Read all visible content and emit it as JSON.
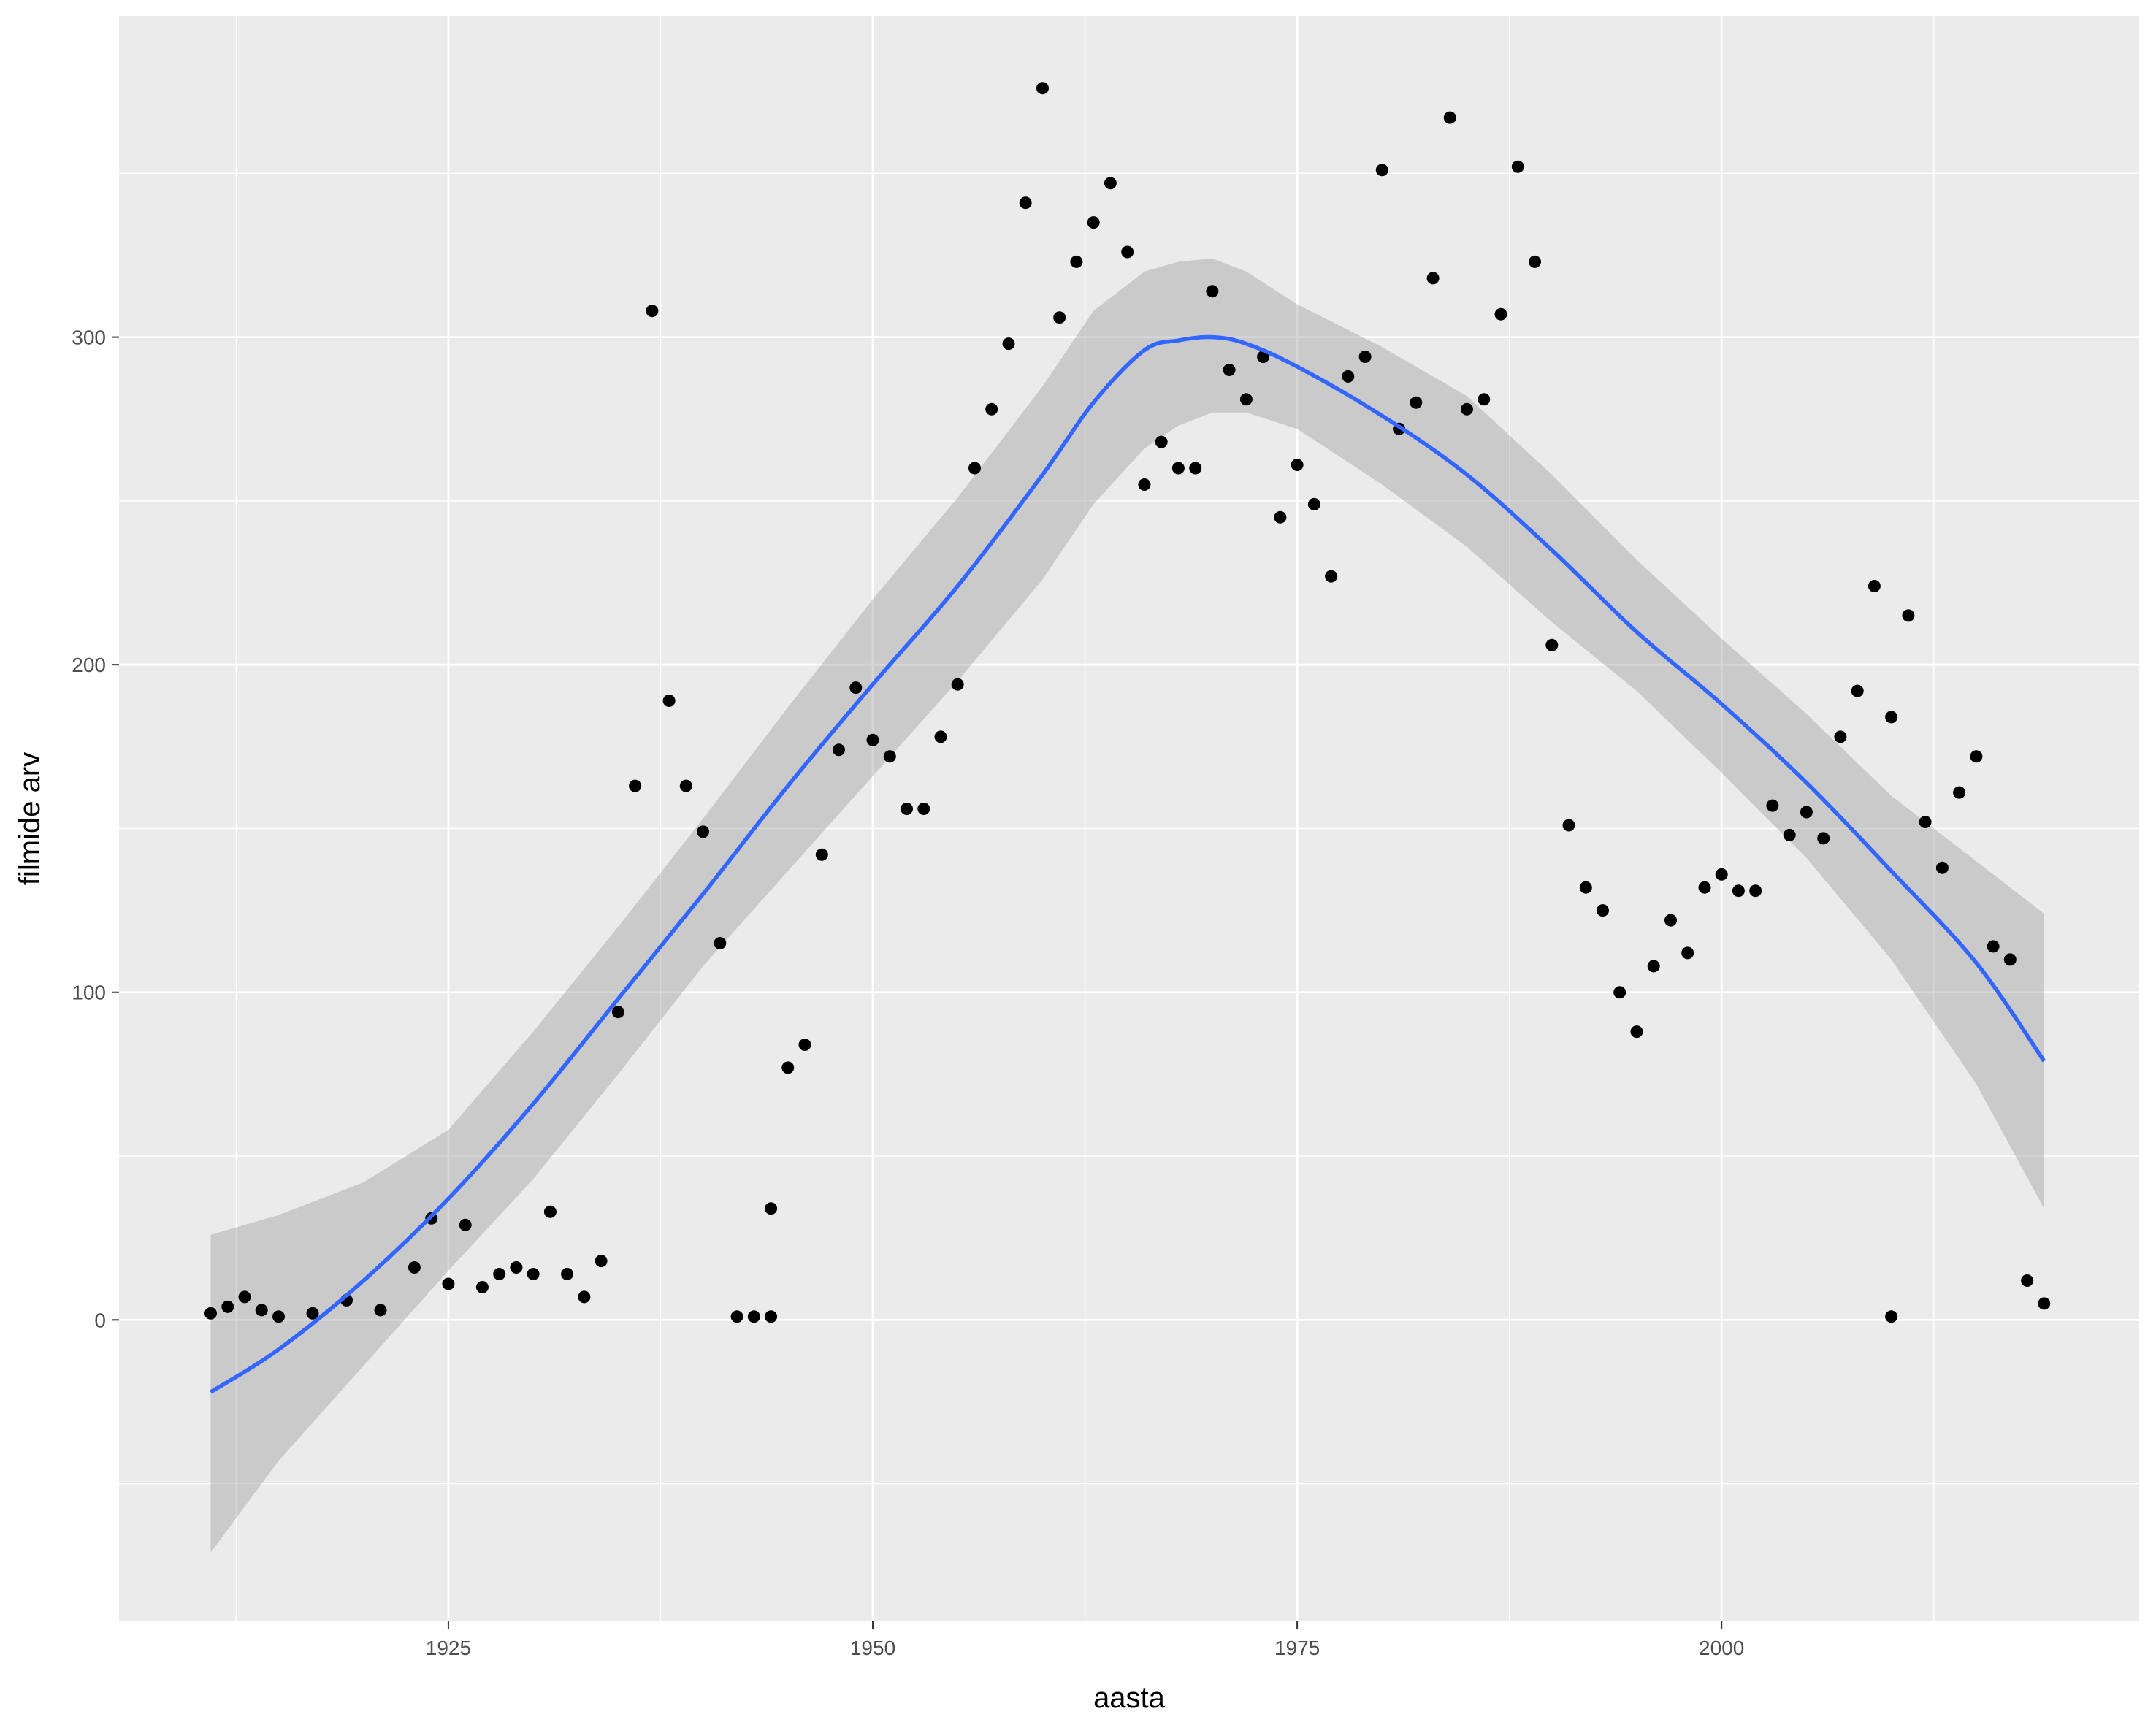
{
  "chart_data": {
    "type": "scatter",
    "xlabel": "aasta",
    "ylabel": "filmide arv",
    "xlim": [
      1905.6,
      2024.6
    ],
    "ylim": [
      -92,
      398
    ],
    "x_ticks": [
      1925,
      1950,
      1975,
      2000
    ],
    "y_ticks": [
      0,
      100,
      200,
      300
    ],
    "grid": true,
    "legend": "none",
    "colors": {
      "panel": "#ebebeb",
      "grid": "#ffffff",
      "points": "#000000",
      "smooth": "#3366ff",
      "band": "#999999"
    },
    "series": [
      {
        "kind": "points",
        "x": [
          1911,
          1912,
          1913,
          1914,
          1915,
          1917,
          1919,
          1921,
          1923,
          1924,
          1925,
          1926,
          1927,
          1928,
          1929,
          1930,
          1931,
          1932,
          1933,
          1934,
          1935,
          1936,
          1937,
          1938,
          1939,
          1940,
          1941,
          1942,
          1943,
          1944,
          1944,
          1945,
          1946,
          1947,
          1948,
          1949,
          1950,
          1951,
          1952,
          1953,
          1954,
          1955,
          1956,
          1957,
          1958,
          1959,
          1960,
          1961,
          1962,
          1963,
          1964,
          1965,
          1966,
          1967,
          1968,
          1969,
          1970,
          1971,
          1972,
          1973,
          1974,
          1975,
          1976,
          1977,
          1978,
          1979,
          1980,
          1981,
          1982,
          1983,
          1984,
          1985,
          1986,
          1987,
          1988,
          1989,
          1990,
          1991,
          1992,
          1993,
          1994,
          1995,
          1996,
          1997,
          1998,
          1999,
          2000,
          2001,
          2002,
          2003,
          2004,
          2005,
          2006,
          2007,
          2008,
          2009,
          2010,
          2010,
          2011,
          2012,
          2013,
          2014,
          2015,
          2016,
          2017,
          2018,
          2019
        ],
        "y": [
          2,
          4,
          7,
          3,
          1,
          2,
          6,
          3,
          16,
          31,
          11,
          29,
          10,
          14,
          16,
          14,
          33,
          14,
          7,
          18,
          94,
          163,
          308,
          189,
          163,
          149,
          115,
          1,
          1,
          1,
          34,
          77,
          84,
          142,
          174,
          193,
          177,
          172,
          156,
          156,
          178,
          194,
          260,
          278,
          298,
          341,
          376,
          306,
          323,
          335,
          347,
          326,
          255,
          268,
          260,
          260,
          314,
          290,
          281,
          294,
          245,
          261,
          249,
          227,
          288,
          294,
          351,
          272,
          280,
          318,
          367,
          278,
          281,
          307,
          352,
          323,
          206,
          151,
          132,
          125,
          100,
          88,
          108,
          122,
          112,
          132,
          136,
          131,
          131,
          157,
          148,
          155,
          147,
          178,
          192,
          224,
          1,
          184,
          215,
          152,
          138,
          161,
          172,
          114,
          110,
          12,
          5
        ]
      },
      {
        "kind": "smooth",
        "x": [
          1911,
          1915,
          1920,
          1925,
          1930,
          1935,
          1940,
          1945,
          1950,
          1955,
          1960,
          1963,
          1966,
          1968,
          1970,
          1972,
          1975,
          1980,
          1985,
          1990,
          1995,
          2000,
          2005,
          2010,
          2015,
          2019
        ],
        "y": [
          -22,
          -9,
          12,
          37,
          66,
          98,
          130,
          163,
          194,
          224,
          258,
          280,
          296,
          299,
          300,
          298,
          291,
          276,
          258,
          235,
          210,
          188,
          164,
          137,
          109,
          79
        ],
        "lower": [
          -71,
          -43,
          -14,
          15,
          43,
          75,
          108,
          137,
          166,
          195,
          226,
          249,
          266,
          273,
          277,
          277,
          272,
          255,
          236,
          213,
          192,
          167,
          141,
          110,
          72,
          34
        ],
        "upper": [
          26,
          32,
          42,
          58,
          88,
          120,
          153,
          187,
          220,
          251,
          285,
          308,
          320,
          323,
          324,
          320,
          310,
          297,
          282,
          258,
          232,
          208,
          185,
          160,
          140,
          124
        ]
      }
    ]
  }
}
